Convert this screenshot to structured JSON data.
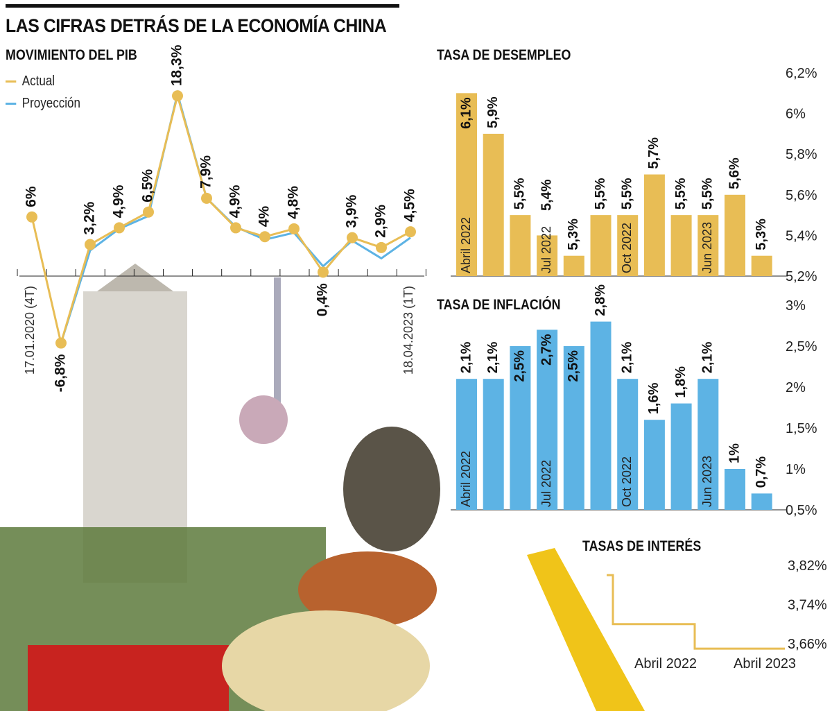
{
  "title": "LAS CIFRAS DETRÁS DE LA ECONOMÍA CHINA",
  "colors": {
    "actual": "#e8bd55",
    "projection": "#5db3e4",
    "unemployment": "#e8bd55",
    "inflation": "#5db3e4",
    "interest": "#e8bd55"
  },
  "chart_data": [
    {
      "type": "line",
      "title": "MOVIMIENTO DEL PIB",
      "x_labels": [
        "17.01.2020 (4T)",
        "18.04.2023 (1T)"
      ],
      "data_labels": [
        "6%",
        "-6,8%",
        "3,2%",
        "4,9%",
        "6,5%",
        "18,3%",
        "7,9%",
        "4,9%",
        "4%",
        "4,8%",
        "0,4%",
        "3,9%",
        "2,9%",
        "4,5%"
      ],
      "series": [
        {
          "name": "Actual",
          "values": [
            6,
            -6.8,
            3.2,
            4.9,
            6.5,
            18.3,
            7.9,
            4.9,
            4,
            4.8,
            0.4,
            3.9,
            2.9,
            4.5
          ]
        },
        {
          "name": "Proyección",
          "values": [
            null,
            -6.8,
            2.6,
            4.8,
            6.1,
            18.5,
            7.9,
            5.0,
            3.7,
            4.4,
            1.0,
            3.6,
            1.8,
            3.9
          ]
        }
      ],
      "legend": "top-left"
    },
    {
      "type": "bar",
      "title": "TASA DE DESEMPLEO",
      "values": [
        6.1,
        5.9,
        5.5,
        5.4,
        5.3,
        5.5,
        5.5,
        5.7,
        5.5,
        5.5,
        5.6,
        5.3
      ],
      "data_labels": [
        "6,1%",
        "5,9%",
        "5,5%",
        "5,4%",
        "5,3%",
        "5,5%",
        "5,5%",
        "5,7%",
        "5,5%",
        "5,5%",
        "5,6%",
        "5,3%"
      ],
      "category_labels": [
        "Abril 2022",
        "",
        "",
        "Jul 2022",
        "",
        "",
        "Oct 2022",
        "",
        "",
        "Jun 2023",
        "",
        ""
      ],
      "y_ticks": [
        "5,2%",
        "5,4%",
        "5,6%",
        "5,8%",
        "6%",
        "6,2%"
      ],
      "ylim": [
        5.2,
        6.2
      ]
    },
    {
      "type": "bar",
      "title": "TASA DE INFLACIÓN",
      "values": [
        2.1,
        2.1,
        2.5,
        2.7,
        2.5,
        2.8,
        2.1,
        1.6,
        1.8,
        2.1,
        1,
        0.7
      ],
      "data_labels": [
        "2,1%",
        "2,1%",
        "2,5%",
        "2,7%",
        "2,5%",
        "2,8%",
        "2,1%",
        "1,6%",
        "1,8%",
        "2,1%",
        "1%",
        "0,7%"
      ],
      "category_labels": [
        "Abril 2022",
        "",
        "",
        "Jul 2022",
        "",
        "",
        "Oct 2022",
        "",
        "",
        "Jun 2023",
        "",
        ""
      ],
      "y_ticks": [
        "0,5%",
        "1%",
        "1,5%",
        "2%",
        "2,5%",
        "3%"
      ],
      "ylim": [
        0.5,
        3
      ]
    },
    {
      "type": "line",
      "title": "TASAS DE INTERÉS",
      "steps": [
        3.8,
        3.7,
        3.65
      ],
      "x_labels": [
        "Abril 2022",
        "Abril 2023"
      ],
      "y_ticks": [
        "3,66%",
        "3,74%",
        "3,82%"
      ],
      "ylim": [
        3.66,
        3.82
      ]
    }
  ]
}
